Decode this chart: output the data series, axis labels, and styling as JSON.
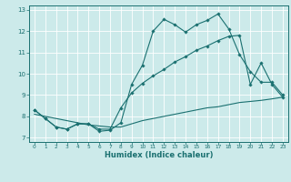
{
  "xlabel": "Humidex (Indice chaleur)",
  "bg_color": "#cceaea",
  "line_color": "#1a7070",
  "grid_color": "#ffffff",
  "xlim": [
    -0.5,
    23.5
  ],
  "ylim": [
    6.8,
    13.2
  ],
  "xticks": [
    0,
    1,
    2,
    3,
    4,
    5,
    6,
    7,
    8,
    9,
    10,
    11,
    12,
    13,
    14,
    15,
    16,
    17,
    18,
    19,
    20,
    21,
    22,
    23
  ],
  "yticks": [
    7,
    8,
    9,
    10,
    11,
    12,
    13
  ],
  "line1_x": [
    0,
    1,
    2,
    3,
    4,
    5,
    6,
    7,
    8,
    9,
    10,
    11,
    12,
    13,
    14,
    15,
    16,
    17,
    18,
    19,
    20,
    21,
    22,
    23
  ],
  "line1_y": [
    8.3,
    7.9,
    7.5,
    7.4,
    7.65,
    7.65,
    7.3,
    7.35,
    7.7,
    9.5,
    10.4,
    12.0,
    12.55,
    12.3,
    11.95,
    12.3,
    12.5,
    12.8,
    12.1,
    10.9,
    10.1,
    9.6,
    9.6,
    9.0
  ],
  "line2_x": [
    0,
    1,
    2,
    3,
    4,
    5,
    6,
    7,
    8,
    9,
    10,
    11,
    12,
    13,
    14,
    15,
    16,
    17,
    18,
    19,
    20,
    21,
    22,
    23
  ],
  "line2_y": [
    8.3,
    7.9,
    7.5,
    7.4,
    7.65,
    7.65,
    7.4,
    7.4,
    8.4,
    9.1,
    9.55,
    9.9,
    10.2,
    10.55,
    10.8,
    11.1,
    11.3,
    11.55,
    11.75,
    11.8,
    9.5,
    10.5,
    9.5,
    8.9
  ],
  "line3_x": [
    0,
    1,
    2,
    3,
    4,
    5,
    6,
    7,
    8,
    9,
    10,
    11,
    12,
    13,
    14,
    15,
    16,
    17,
    18,
    19,
    20,
    21,
    22,
    23
  ],
  "line3_y": [
    8.1,
    8.0,
    7.9,
    7.8,
    7.7,
    7.6,
    7.55,
    7.5,
    7.5,
    7.65,
    7.8,
    7.9,
    8.0,
    8.1,
    8.2,
    8.3,
    8.4,
    8.45,
    8.55,
    8.65,
    8.7,
    8.75,
    8.82,
    8.9
  ]
}
